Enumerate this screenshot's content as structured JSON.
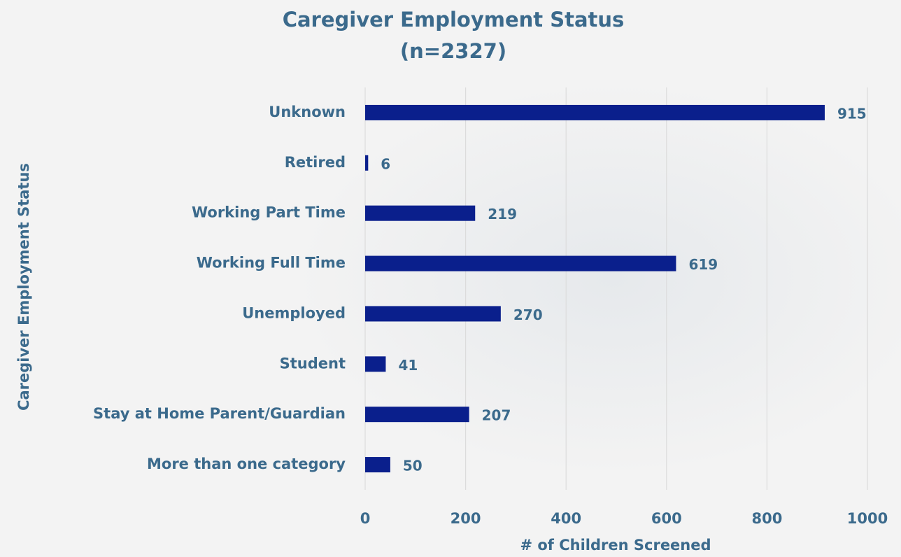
{
  "chart_data": {
    "type": "bar",
    "orientation": "horizontal",
    "title": "Caregiver Employment Status",
    "subtitle": "(n=2327)",
    "x_label": "# of Children Screened",
    "y_label": "Caregiver Employment Status",
    "categories": [
      "Unknown",
      "Retired",
      "Working Part Time",
      "Working Full Time",
      "Unemployed",
      "Student",
      "Stay at Home Parent/Guardian",
      "More than one category"
    ],
    "values": [
      915,
      6,
      219,
      619,
      270,
      41,
      207,
      50
    ],
    "color": "#0a1f8c",
    "xlim": [
      0,
      1000
    ],
    "xticks": [
      0,
      200,
      400,
      600,
      800,
      1000
    ],
    "grid": true
  }
}
